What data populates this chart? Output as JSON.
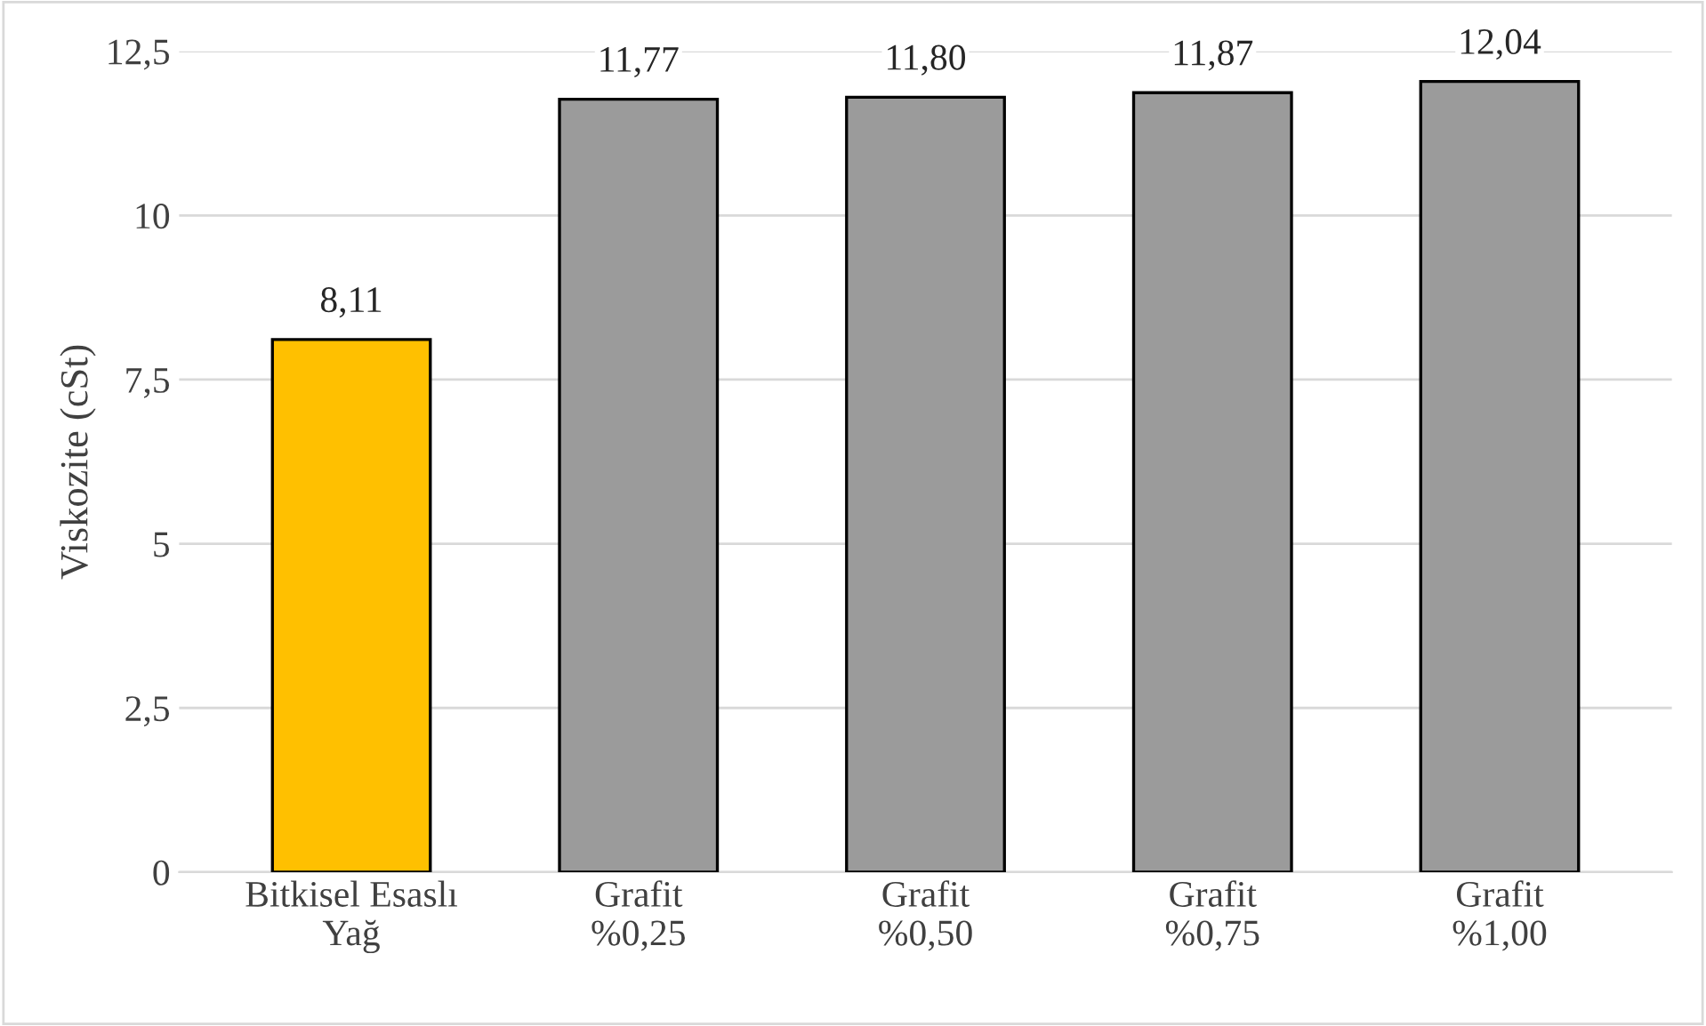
{
  "chart_data": {
    "type": "bar",
    "ylabel": "Viskozite (cSt)",
    "categories": [
      "Bitkisel Esaslı\nYağ",
      "Grafit\n%0,25",
      "Grafit\n%0,50",
      "Grafit\n%0,75",
      "Grafit\n%1,00"
    ],
    "values": [
      8.11,
      11.77,
      11.8,
      11.87,
      12.04
    ],
    "value_labels": [
      "8,11",
      "11,77",
      "11,80",
      "11,87",
      "12,04"
    ],
    "colors": [
      "#ffc000",
      "#9b9b9b",
      "#9b9b9b",
      "#9b9b9b",
      "#9b9b9b"
    ],
    "ylim": [
      0,
      12.5
    ],
    "yticks": [
      0,
      {
        "value": 2.5,
        "label": "2,5"
      },
      5,
      {
        "value": 7.5,
        "label": "7,5"
      },
      10,
      {
        "value": 12.5,
        "label": "12,5"
      }
    ],
    "grid": "y"
  }
}
